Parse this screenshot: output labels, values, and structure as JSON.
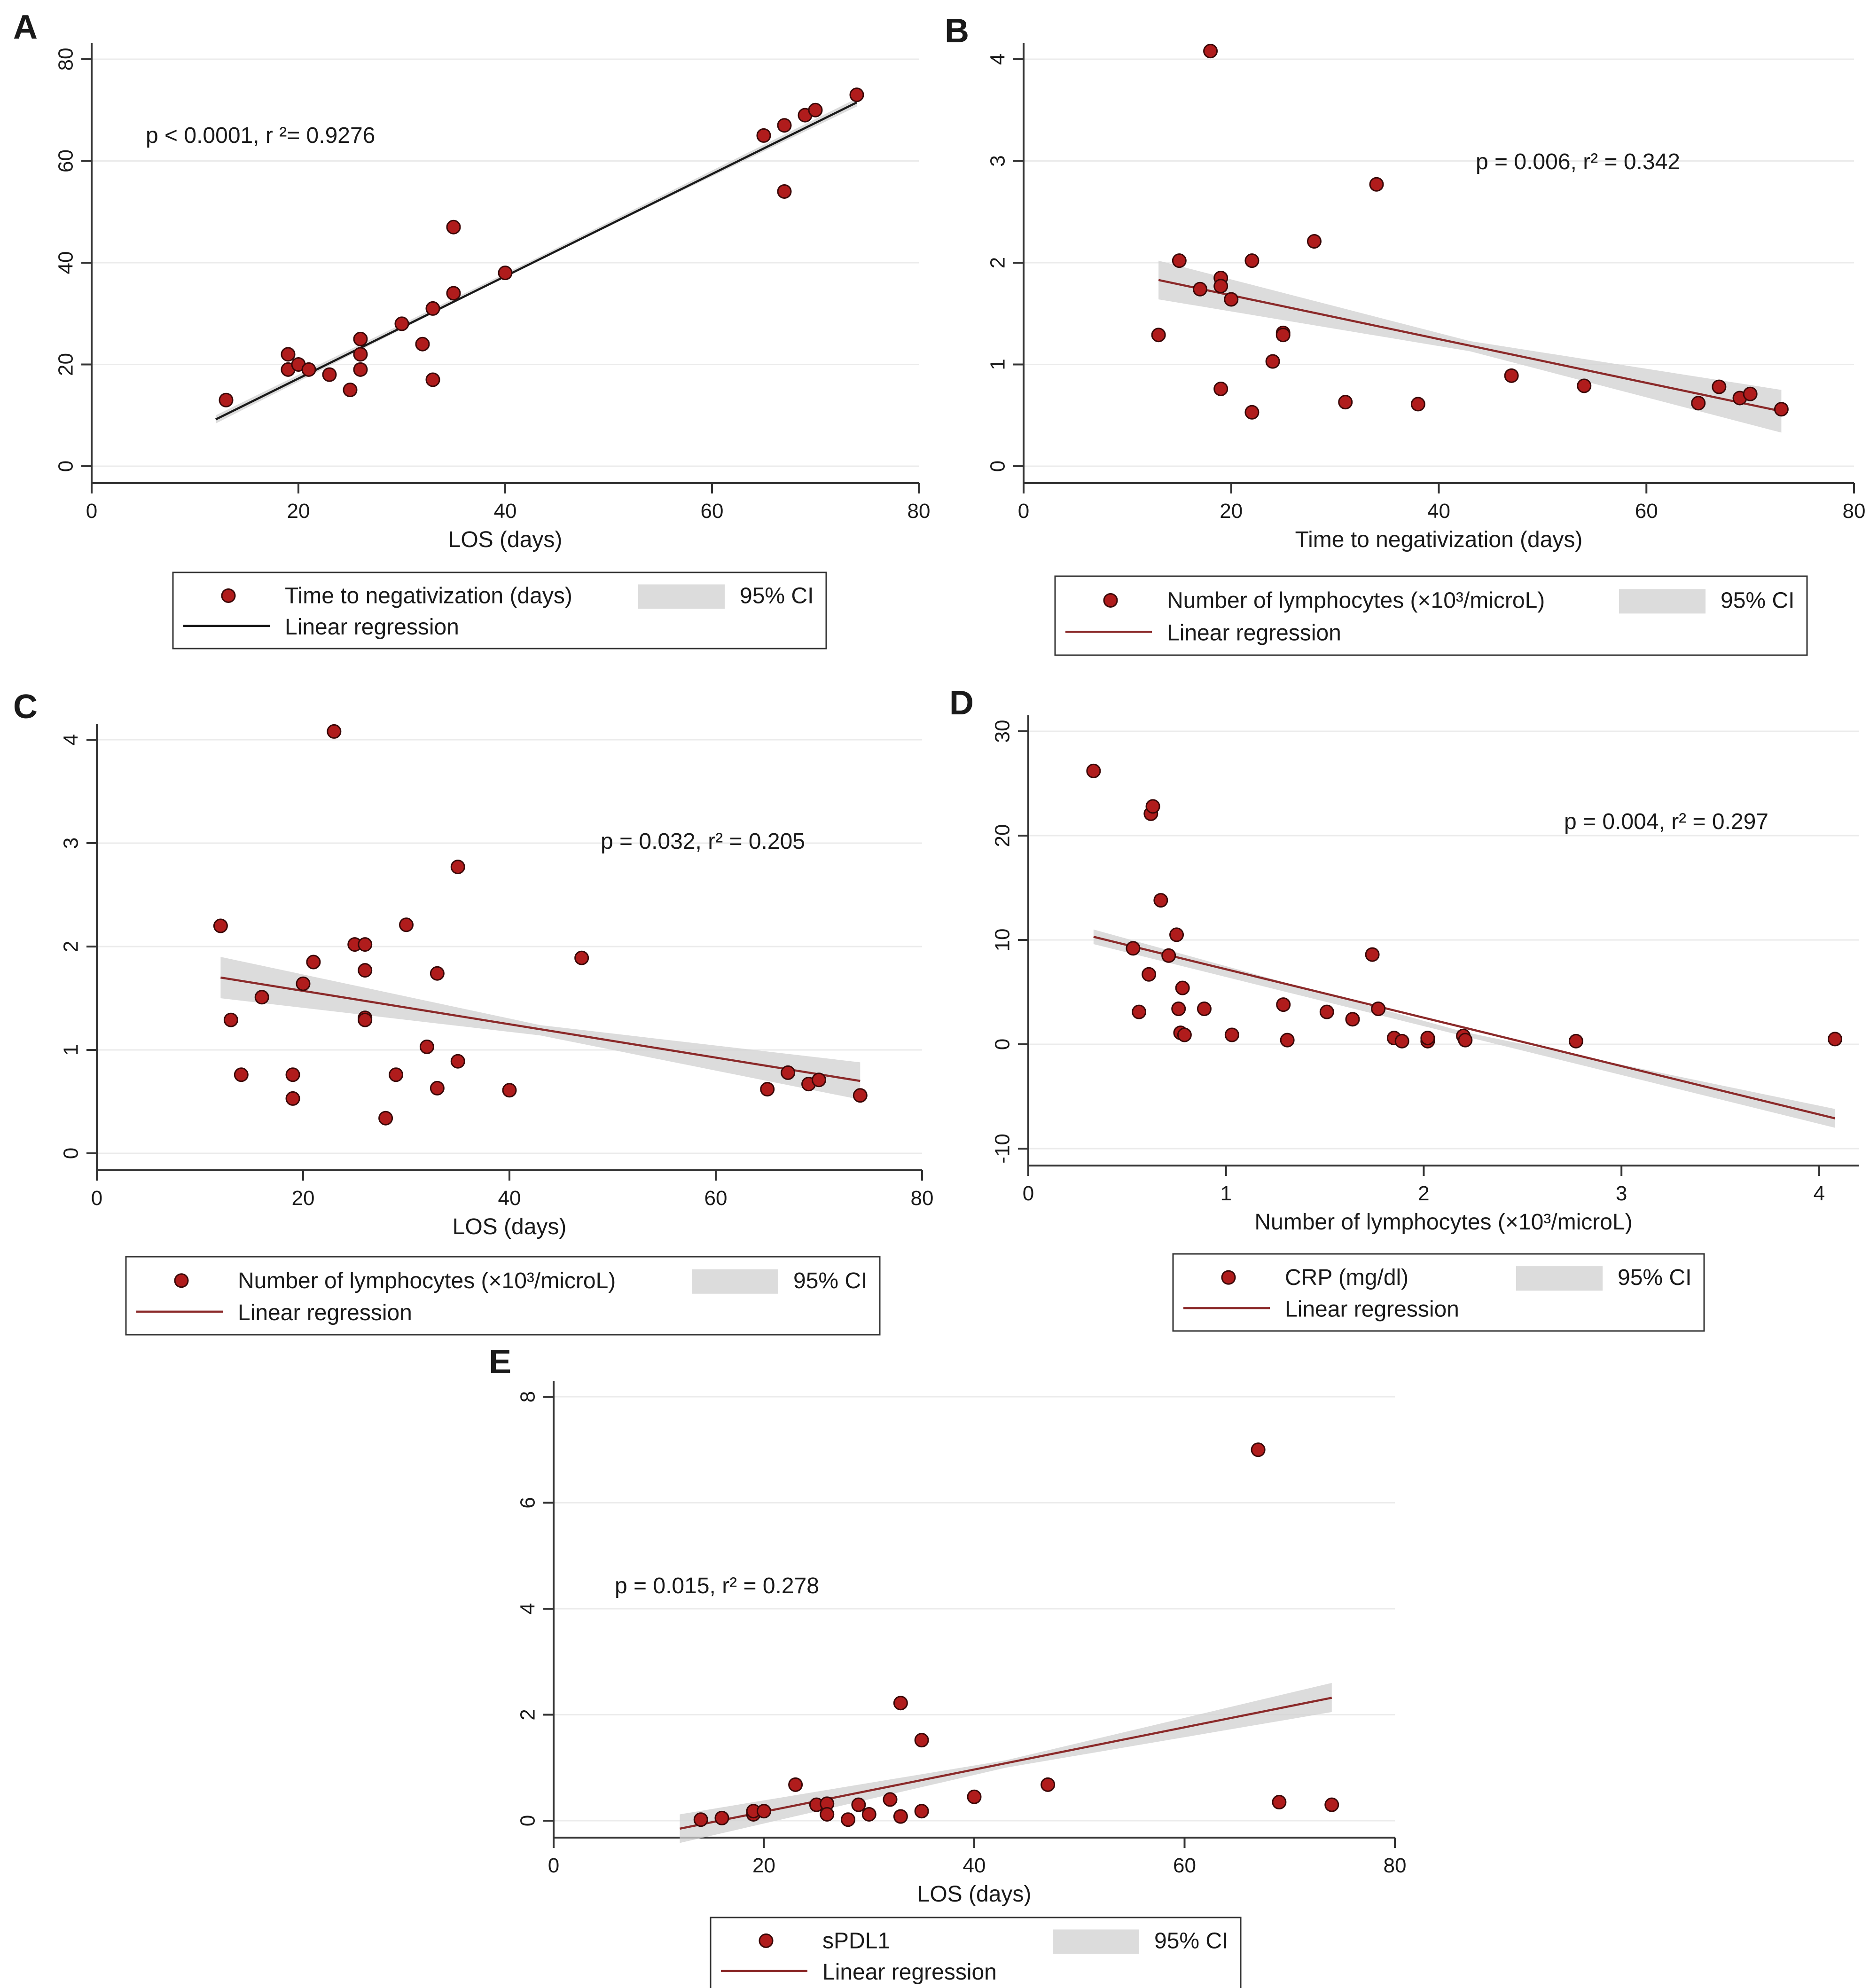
{
  "colors": {
    "point_fill": "#b01c1c",
    "point_stroke": "#3a0808",
    "line_black": "#1a1a1a",
    "line_red": "#8b2a2a",
    "ci_band": "#d0d0d0",
    "grid": "#ebebeb",
    "axis": "#333333"
  },
  "chart_data": [
    {
      "panel": "A",
      "type": "scatter",
      "xlabel": "LOS (days)",
      "xlim": [
        0,
        80
      ],
      "ylim": [
        0,
        80
      ],
      "x_ticks": [
        "0",
        "20",
        "40",
        "60",
        "80"
      ],
      "y_ticks": [
        "0",
        "20",
        "40",
        "60",
        "80"
      ],
      "annotation": "p < 0.0001, r ²= 0.9276",
      "legend": {
        "points": "Time to negativization (days)",
        "line": "Linear regression",
        "ci": "95% CI"
      },
      "line_color": "black",
      "points": [
        [
          13,
          13
        ],
        [
          19,
          22
        ],
        [
          19,
          19
        ],
        [
          20,
          20
        ],
        [
          21,
          19
        ],
        [
          23,
          18
        ],
        [
          25,
          15
        ],
        [
          26,
          25
        ],
        [
          26,
          22
        ],
        [
          26,
          19
        ],
        [
          30,
          28
        ],
        [
          32,
          24
        ],
        [
          33,
          31
        ],
        [
          33,
          17
        ],
        [
          35,
          47
        ],
        [
          35,
          34
        ],
        [
          40,
          38
        ],
        [
          65,
          65
        ],
        [
          67,
          67
        ],
        [
          67,
          54
        ],
        [
          69,
          69
        ],
        [
          70,
          70
        ],
        [
          74,
          73
        ]
      ],
      "regression": {
        "x": [
          12,
          74
        ],
        "y": [
          9.2,
          71.5
        ]
      },
      "ci": {
        "x": [
          12,
          43,
          74
        ],
        "lower": [
          8.4,
          40.3,
          70.7
        ],
        "upper": [
          10.0,
          40.9,
          72.3
        ]
      }
    },
    {
      "panel": "B",
      "type": "scatter",
      "xlabel": "Time to negativization (days)",
      "xlim": [
        0,
        80
      ],
      "ylim": [
        0,
        4
      ],
      "x_ticks": [
        "0",
        "20",
        "40",
        "60",
        "80"
      ],
      "y_ticks": [
        "0",
        "1",
        "2",
        "3",
        "4"
      ],
      "annotation": "p = 0.006, r² = 0.342",
      "legend": {
        "points": "Number of lymphocytes (×10³/microL)",
        "line": "Linear regression",
        "ci": "95% CI"
      },
      "line_color": "red",
      "points": [
        [
          13,
          1.29
        ],
        [
          15,
          2.02
        ],
        [
          17,
          1.74
        ],
        [
          18,
          4.08
        ],
        [
          19,
          1.85
        ],
        [
          19,
          1.77
        ],
        [
          19,
          0.76
        ],
        [
          20,
          1.64
        ],
        [
          22,
          2.02
        ],
        [
          22,
          0.53
        ],
        [
          24,
          1.03
        ],
        [
          25,
          1.31
        ],
        [
          25,
          1.29
        ],
        [
          28,
          2.21
        ],
        [
          31,
          0.63
        ],
        [
          34,
          2.77
        ],
        [
          38,
          0.61
        ],
        [
          47,
          0.89
        ],
        [
          54,
          0.79
        ],
        [
          65,
          0.62
        ],
        [
          67,
          0.78
        ],
        [
          69,
          0.67
        ],
        [
          70,
          0.71
        ],
        [
          73,
          0.56
        ]
      ],
      "regression": {
        "x": [
          13,
          73
        ],
        "y": [
          1.83,
          0.54
        ]
      },
      "ci": {
        "x": [
          13,
          43,
          73
        ],
        "lower": [
          1.64,
          1.13,
          0.33
        ],
        "upper": [
          2.02,
          1.23,
          0.75
        ]
      }
    },
    {
      "panel": "C",
      "type": "scatter",
      "xlabel": "LOS (days)",
      "xlim": [
        0,
        80
      ],
      "ylim": [
        0,
        4
      ],
      "x_ticks": [
        "0",
        "20",
        "40",
        "60",
        "80"
      ],
      "y_ticks": [
        "0",
        "1",
        "2",
        "3",
        "4"
      ],
      "annotation": "p = 0.032, r² = 0.205",
      "legend": {
        "points": "Number of lymphocytes (×10³/microL)",
        "line": "Linear regression",
        "ci": "95% CI"
      },
      "line_color": "red",
      "points": [
        [
          12,
          2.2
        ],
        [
          13,
          1.29
        ],
        [
          14,
          0.76
        ],
        [
          16,
          1.51
        ],
        [
          19,
          0.76
        ],
        [
          19,
          0.53
        ],
        [
          20,
          1.64
        ],
        [
          21,
          1.85
        ],
        [
          23,
          4.08
        ],
        [
          25,
          2.02
        ],
        [
          26,
          2.02
        ],
        [
          26,
          1.77
        ],
        [
          26,
          1.31
        ],
        [
          26,
          1.29
        ],
        [
          28,
          0.34
        ],
        [
          29,
          0.76
        ],
        [
          30,
          2.21
        ],
        [
          32,
          1.03
        ],
        [
          33,
          1.74
        ],
        [
          33,
          0.63
        ],
        [
          35,
          2.77
        ],
        [
          35,
          0.89
        ],
        [
          40,
          0.61
        ],
        [
          47,
          1.89
        ],
        [
          65,
          0.62
        ],
        [
          67,
          0.78
        ],
        [
          69,
          0.67
        ],
        [
          70,
          0.71
        ],
        [
          74,
          0.56
        ]
      ],
      "regression": {
        "x": [
          12,
          74
        ],
        "y": [
          1.7,
          0.7
        ]
      },
      "ci": {
        "x": [
          12,
          43,
          74
        ],
        "lower": [
          1.5,
          1.14,
          0.52
        ],
        "upper": [
          1.9,
          1.24,
          0.88
        ]
      }
    },
    {
      "panel": "D",
      "type": "scatter",
      "xlabel": "Number of lymphocytes (×10³/microL)",
      "xlim": [
        0,
        4.2
      ],
      "ylim": [
        -10,
        30
      ],
      "x_ticks": [
        "0",
        "1",
        "2",
        "3",
        "4"
      ],
      "y_ticks": [
        "-10",
        "0",
        "10",
        "20",
        "30"
      ],
      "annotation": "p = 0.004, r² = 0.297",
      "legend": {
        "points": "CRP (mg/dl)",
        "line": "Linear regression",
        "ci": "95% CI"
      },
      "line_color": "red",
      "points": [
        [
          0.33,
          26.2
        ],
        [
          0.53,
          9.2
        ],
        [
          0.56,
          3.1
        ],
        [
          0.61,
          6.7
        ],
        [
          0.62,
          22.1
        ],
        [
          0.63,
          22.8
        ],
        [
          0.67,
          13.8
        ],
        [
          0.71,
          8.5
        ],
        [
          0.75,
          10.5
        ],
        [
          0.76,
          3.4
        ],
        [
          0.77,
          1.1
        ],
        [
          0.78,
          5.4
        ],
        [
          0.79,
          0.9
        ],
        [
          0.89,
          3.4
        ],
        [
          1.03,
          0.9
        ],
        [
          1.29,
          3.8
        ],
        [
          1.31,
          0.4
        ],
        [
          1.51,
          3.1
        ],
        [
          1.64,
          2.4
        ],
        [
          1.74,
          8.6
        ],
        [
          1.77,
          3.4
        ],
        [
          1.85,
          0.6
        ],
        [
          1.89,
          0.3
        ],
        [
          2.02,
          0.3
        ],
        [
          2.02,
          0.6
        ],
        [
          2.2,
          0.8
        ],
        [
          2.21,
          0.4
        ],
        [
          2.77,
          0.3
        ],
        [
          4.08,
          0.5
        ]
      ],
      "regression": {
        "x": [
          0.33,
          4.08
        ],
        "y": [
          10.3,
          -7.1
        ]
      },
      "ci": {
        "x": [
          0.33,
          2.2,
          4.08
        ],
        "lower": [
          9.6,
          0.8,
          -8.0
        ],
        "upper": [
          11.0,
          1.2,
          -6.2
        ]
      }
    },
    {
      "panel": "E",
      "type": "scatter",
      "xlabel": "LOS (days)",
      "xlim": [
        0,
        80
      ],
      "ylim": [
        0,
        8
      ],
      "x_ticks": [
        "0",
        "20",
        "40",
        "60",
        "80"
      ],
      "y_ticks": [
        "0",
        "2",
        "4",
        "6",
        "8"
      ],
      "annotation": "p = 0.015, r² = 0.278",
      "legend": {
        "points": "sPDL1",
        "line": "Linear regression",
        "ci": "95% CI"
      },
      "line_color": "red",
      "points": [
        [
          14,
          0.02
        ],
        [
          16,
          0.05
        ],
        [
          19,
          0.12
        ],
        [
          19,
          0.18
        ],
        [
          20,
          0.18
        ],
        [
          23,
          0.68
        ],
        [
          25,
          0.3
        ],
        [
          26,
          0.32
        ],
        [
          26,
          0.12
        ],
        [
          28,
          0.02
        ],
        [
          29,
          0.3
        ],
        [
          30,
          0.12
        ],
        [
          32,
          0.4
        ],
        [
          33,
          0.08
        ],
        [
          33,
          2.22
        ],
        [
          35,
          1.52
        ],
        [
          35,
          0.18
        ],
        [
          40,
          0.45
        ],
        [
          47,
          0.68
        ],
        [
          67,
          7.0
        ],
        [
          69,
          0.35
        ],
        [
          74,
          0.3
        ]
      ],
      "regression": {
        "x": [
          12,
          74
        ],
        "y": [
          -0.15,
          2.32
        ]
      },
      "ci": {
        "x": [
          12,
          43,
          74
        ],
        "lower": [
          -0.42,
          1.0,
          2.05
        ],
        "upper": [
          0.12,
          1.14,
          2.6
        ]
      }
    }
  ]
}
